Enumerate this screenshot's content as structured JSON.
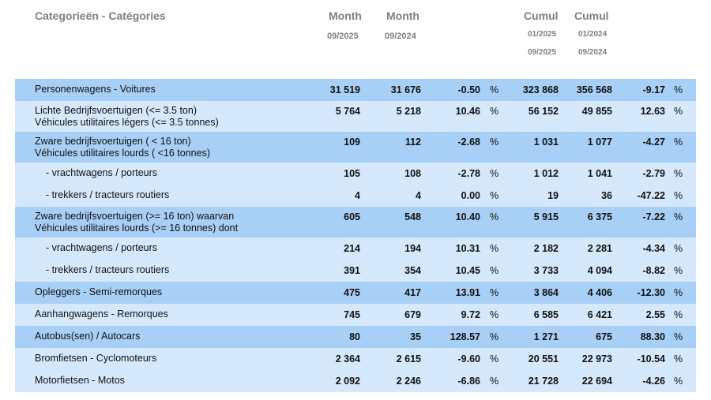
{
  "header": {
    "title": "Categorieën - Catégories",
    "month_1": "Month",
    "month_1_period": "09/2025",
    "month_2": "Month",
    "month_2_period": "09/2024",
    "cumul_1": "Cumul",
    "cumul_1_from": "01/2025",
    "cumul_1_to": "09/2025",
    "cumul_2": "Cumul",
    "cumul_2_from": "01/2024",
    "cumul_2_to": "09/2024"
  },
  "table": {
    "percent_sign": "%",
    "rows": [
      {
        "label": [
          "Personenwagens - Voitures"
        ],
        "cells": [
          "31 519",
          "31 676",
          "-0.50",
          "323 868",
          "356 568",
          "-9.17"
        ],
        "color": "#a8cff5"
      },
      {
        "label": [
          "Lichte Bedrijfsvoertuigen (<= 3.5 ton)",
          "Véhicules utilitaires légers (<= 3.5 tonnes)"
        ],
        "cells": [
          "5 764",
          "5 218",
          "10.46",
          "56 152",
          "49 855",
          "12.63"
        ],
        "color": "#d6e8fb"
      },
      {
        "label": [
          "Zware bedrijfsvoertuigen ( < 16 ton)",
          "Véhicules utilitaires lourds ( <16 tonnes)"
        ],
        "cells": [
          "109",
          "112",
          "-2.68",
          "1 031",
          "1 077",
          "-4.27"
        ],
        "color": "#a8cff5"
      },
      {
        "label": [
          "- vrachtwagens / porteurs"
        ],
        "cells": [
          "105",
          "108",
          "-2.78",
          "1 012",
          "1 041",
          "-2.79"
        ],
        "color": "#d6e8fb"
      },
      {
        "label": [
          "- trekkers / tracteurs routiers"
        ],
        "cells": [
          "4",
          "4",
          "0.00",
          "19",
          "36",
          "-47.22"
        ],
        "color": "#d6e8fb"
      },
      {
        "label": [
          "Zware bedrijfsvoertuigen (>= 16 ton) waarvan",
          "Véhicules utilitaires lourds (>= 16 tonnes) dont"
        ],
        "cells": [
          "605",
          "548",
          "10.40",
          "5 915",
          "6 375",
          "-7.22"
        ],
        "color": "#a8cff5"
      },
      {
        "label": [
          "- vrachtwagens / porteurs"
        ],
        "cells": [
          "214",
          "194",
          "10.31",
          "2 182",
          "2 281",
          "-4.34"
        ],
        "color": "#d6e8fb"
      },
      {
        "label": [
          "- trekkers / tracteurs routiers"
        ],
        "cells": [
          "391",
          "354",
          "10.45",
          "3 733",
          "4 094",
          "-8.82"
        ],
        "color": "#d6e8fb"
      },
      {
        "label": [
          "Opleggers - Semi-remorques"
        ],
        "cells": [
          "475",
          "417",
          "13.91",
          "3 864",
          "4 406",
          "-12.30"
        ],
        "color": "#a8cff5"
      },
      {
        "label": [
          "Aanhangwagens - Remorques"
        ],
        "cells": [
          "745",
          "679",
          "9.72",
          "6 585",
          "6 421",
          "2.55"
        ],
        "color": "#d6e8fb"
      },
      {
        "label": [
          "Autobus(sen) / Autocars"
        ],
        "cells": [
          "80",
          "35",
          "128.57",
          "1 271",
          "675",
          "88.30"
        ],
        "color": "#a8cff5"
      },
      {
        "label": [
          "Bromfietsen - Cyclomoteurs"
        ],
        "cells": [
          "2 364",
          "2 615",
          "-9.60",
          "20 551",
          "22 973",
          "-10.54"
        ],
        "color": "#d6e8fb"
      },
      {
        "label": [
          "Motorfietsen - Motos"
        ],
        "cells": [
          "2 092",
          "2 246",
          "-6.86",
          "21 728",
          "22 694",
          "-4.26"
        ],
        "color": "#d6e8fb"
      }
    ]
  }
}
